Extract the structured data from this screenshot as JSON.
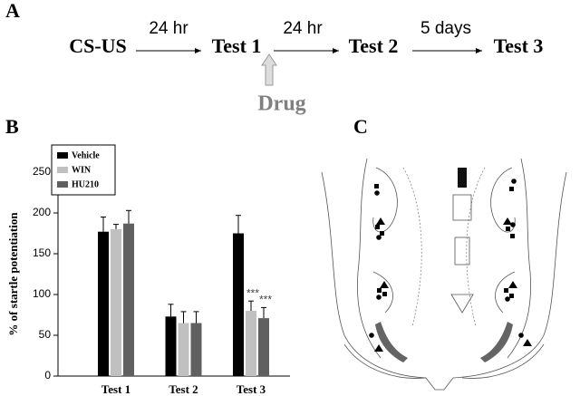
{
  "panels": {
    "a": "A",
    "b": "B",
    "c": "C"
  },
  "timeline": {
    "steps": [
      "CS-US",
      "Test 1",
      "Test 2",
      "Test 3"
    ],
    "intervals": [
      "24 hr",
      "24 hr",
      "5 days"
    ],
    "drug": "Drug"
  },
  "chart_data": {
    "type": "bar",
    "y_label": "% of startle  potentiation",
    "categories": [
      "Test 1",
      "Test 2",
      "Test 3"
    ],
    "series": [
      {
        "name": "Vehicle",
        "color": "#000000",
        "values": [
          177,
          73,
          175
        ],
        "errors": [
          18,
          15,
          22
        ]
      },
      {
        "name": "WIN",
        "color": "#c0c0c0",
        "values": [
          180,
          65,
          80
        ],
        "errors": [
          6,
          14,
          12
        ]
      },
      {
        "name": "HU210",
        "color": "#606060",
        "values": [
          187,
          65,
          71
        ],
        "errors": [
          16,
          14,
          13
        ]
      }
    ],
    "annotations": [
      "***",
      "***"
    ],
    "ylim": [
      0,
      250
    ],
    "yticks": [
      0,
      50,
      100,
      150,
      200,
      250
    ],
    "legend": "upper left"
  }
}
